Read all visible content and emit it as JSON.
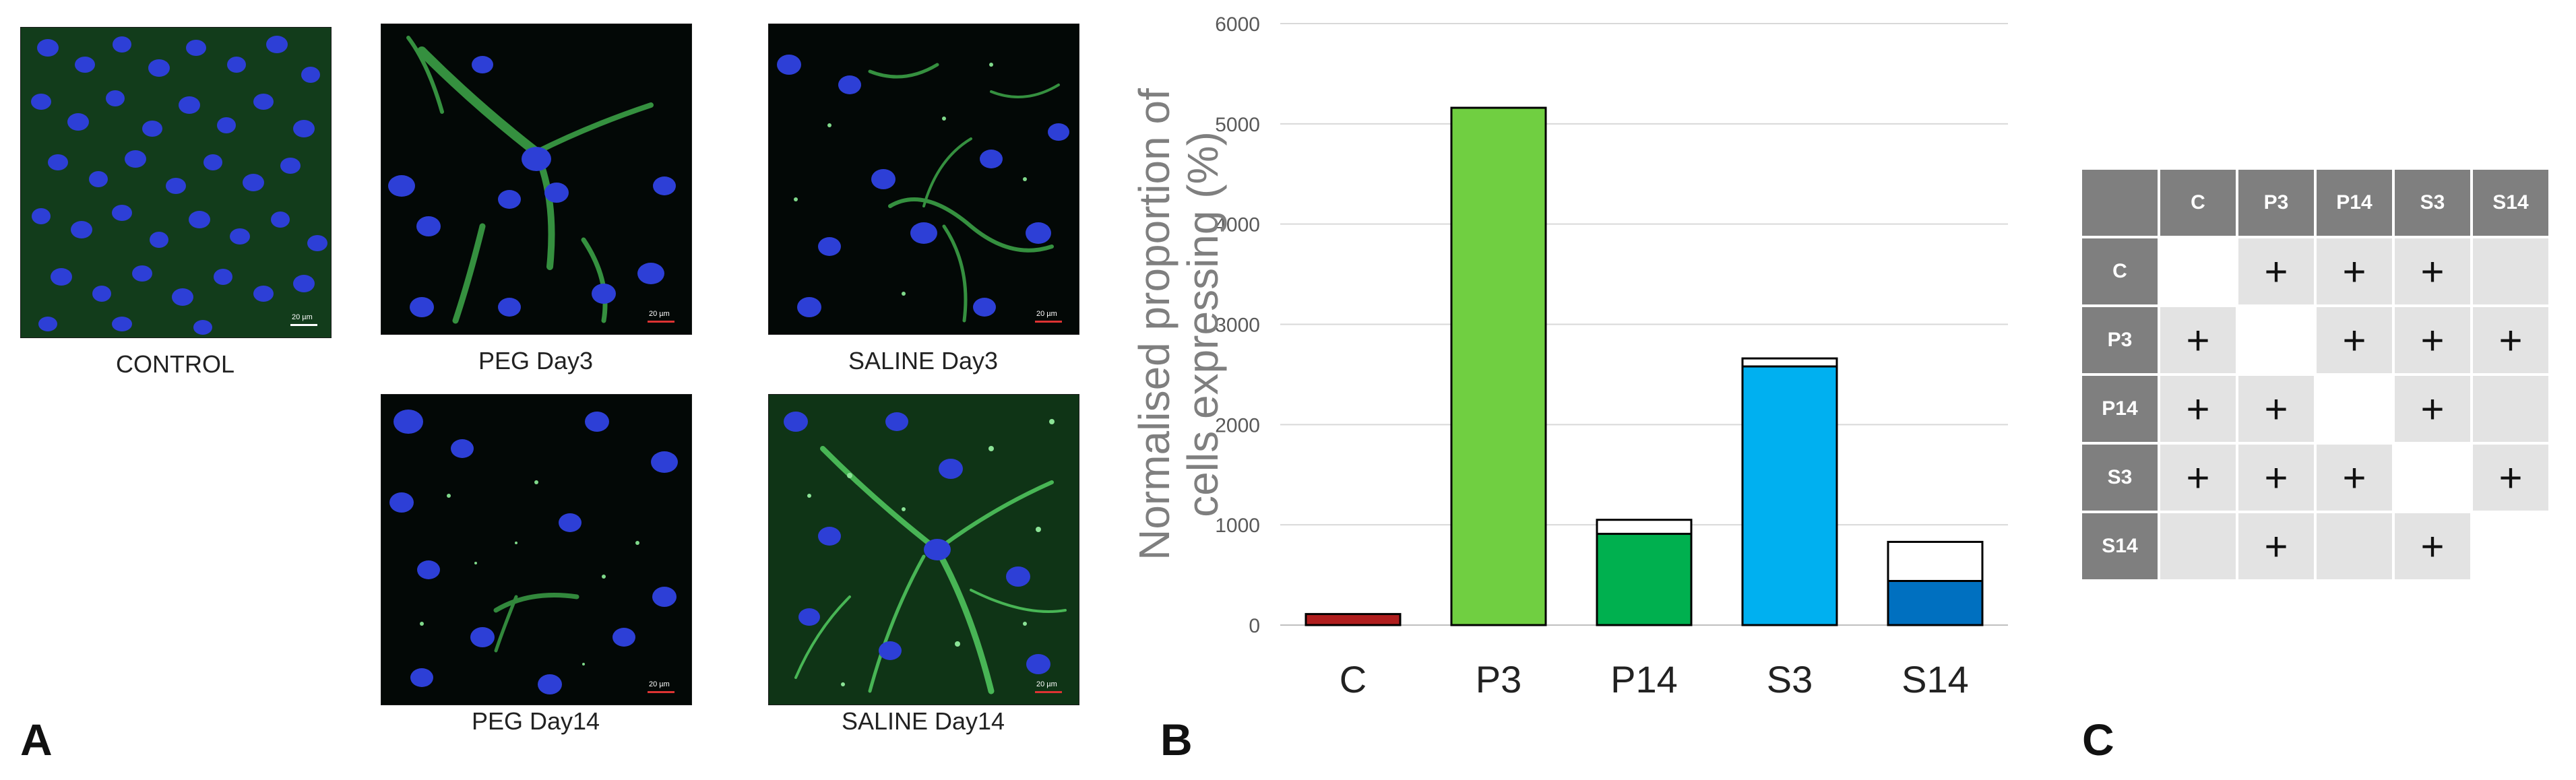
{
  "panel_a": {
    "letter": "A",
    "images": [
      {
        "caption": "CONTROL",
        "scale_label": "20 µm"
      },
      {
        "caption": "PEG Day3",
        "scale_label": "20 µm"
      },
      {
        "caption": "SALINE Day3",
        "scale_label": "20 µm"
      },
      {
        "caption": "PEG Day14",
        "scale_label": "20 µm"
      },
      {
        "caption": "SALINE Day14",
        "scale_label": "20 µm"
      }
    ]
  },
  "panel_b": {
    "letter": "B"
  },
  "panel_c": {
    "letter": "C",
    "headers": [
      "C",
      "P3",
      "P14",
      "S3",
      "S14"
    ],
    "rows": [
      {
        "label": "C",
        "cells": [
          "",
          "+",
          "+",
          "+",
          ""
        ]
      },
      {
        "label": "P3",
        "cells": [
          "+",
          "",
          "+",
          "+",
          "+"
        ]
      },
      {
        "label": "P14",
        "cells": [
          "+",
          "+",
          "",
          "+",
          ""
        ]
      },
      {
        "label": "S3",
        "cells": [
          "+",
          "+",
          "+",
          "",
          "+"
        ]
      },
      {
        "label": "S14",
        "cells": [
          "",
          "+",
          "",
          "+",
          ""
        ]
      }
    ]
  },
  "chart_data": {
    "type": "bar",
    "title": "",
    "xlabel": "",
    "ylabel": "Normalised proportion of cells expressing (%)",
    "ylim": [
      0,
      6000
    ],
    "yticks": [
      0,
      1000,
      2000,
      3000,
      4000,
      5000,
      6000
    ],
    "grid": true,
    "categories": [
      "C",
      "P3",
      "P14",
      "S3",
      "S14"
    ],
    "values": [
      110,
      5160,
      910,
      2580,
      440
    ],
    "error_upper": [
      110,
      5160,
      1050,
      2660,
      830
    ],
    "colors": [
      "#b01e1e",
      "#70cf41",
      "#00b04f",
      "#00b0f0",
      "#0070c0"
    ]
  }
}
